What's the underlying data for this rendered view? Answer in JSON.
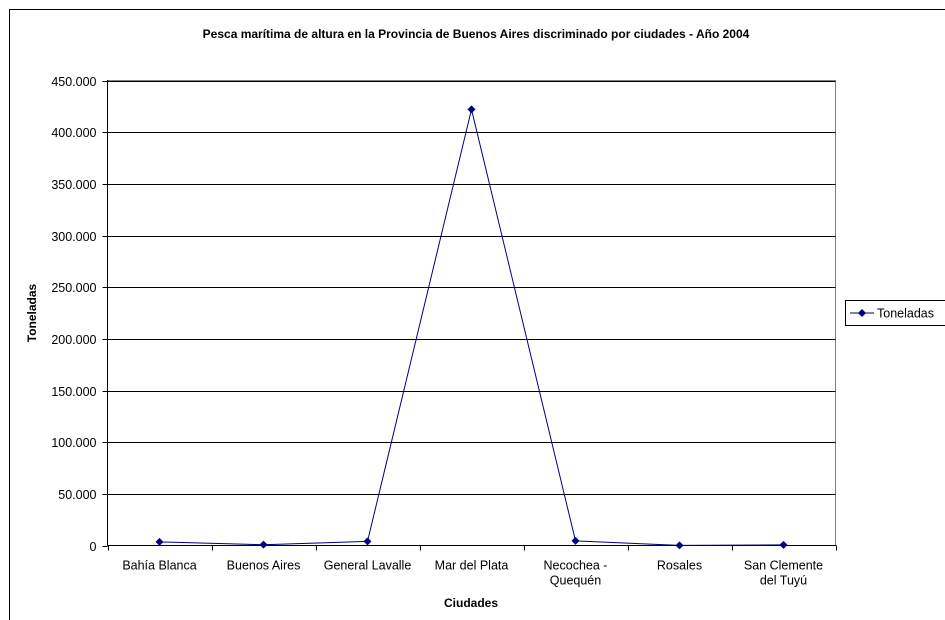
{
  "chart_data": {
    "type": "line",
    "title": "Pesca marítima de altura en la Provincia de Buenos Aires discriminado por ciudades - Año 2004",
    "xlabel": "Ciudades",
    "ylabel": "Toneladas",
    "categories": [
      [
        "Bahía Blanca"
      ],
      [
        "Buenos Aires"
      ],
      [
        "General Lavalle"
      ],
      [
        "Mar del Plata"
      ],
      [
        "Necochea -",
        "Quequén"
      ],
      [
        "Rosales"
      ],
      [
        "San Clemente",
        "del Tuyú"
      ]
    ],
    "series": [
      {
        "name": "Toneladas",
        "color": "#000080",
        "marker": "diamond",
        "values": [
          3500,
          800,
          4000,
          422000,
          4500,
          100,
          600
        ]
      }
    ],
    "ylim": [
      0,
      450000
    ],
    "ytick_step": 50000,
    "ytick_labels": [
      "0",
      "50.000",
      "100.000",
      "150.000",
      "200.000",
      "250.000",
      "300.000",
      "350.000",
      "400.000",
      "450.000"
    ],
    "grid": "horizontal",
    "legend": "right"
  }
}
